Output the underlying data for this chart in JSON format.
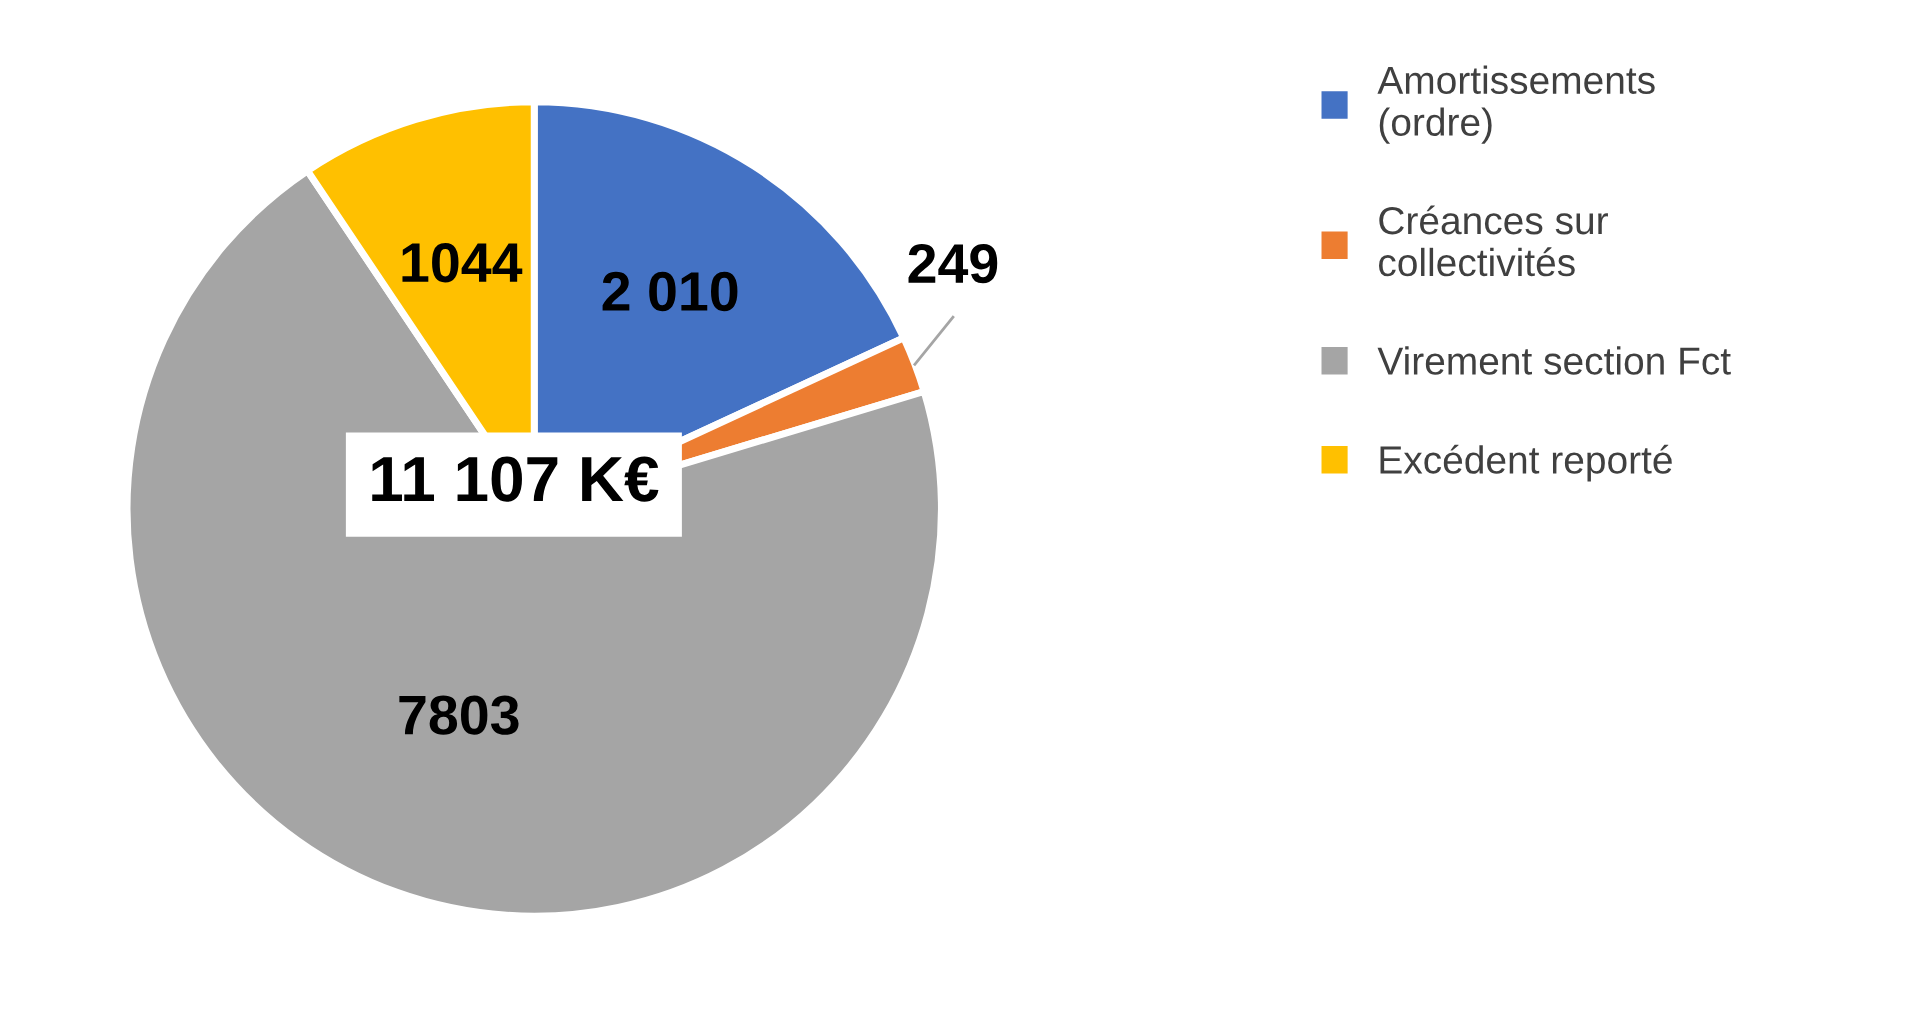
{
  "chart_data": {
    "type": "pie",
    "categories": [
      "Amortissements (ordre)",
      "Créances sur collectivités",
      "Virement section Fct",
      "Excédent reporté"
    ],
    "values": [
      2010,
      249,
      7803,
      1044
    ],
    "colors": [
      "#4472c4",
      "#ed7d31",
      "#a5a5a5",
      "#ffc000"
    ],
    "value_labels": [
      "2 010",
      "249",
      "7803",
      "1044"
    ],
    "annotations": [
      "11 107 K€"
    ],
    "legend": "right"
  }
}
